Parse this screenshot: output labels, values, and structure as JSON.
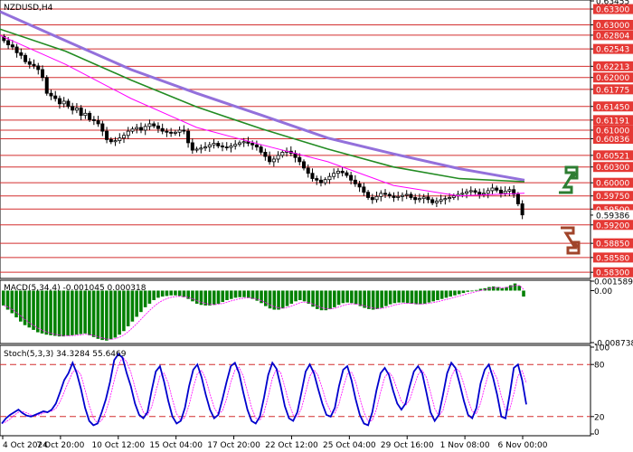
{
  "chart_data": [
    {
      "type": "candlestick",
      "symbol_label": "NZDUSD,H4",
      "ylim": [
        0.582,
        0.63455
      ],
      "axis_labels": [
        "0.63455",
        "0.63300",
        "0.63000",
        "0.62804",
        "0.62543",
        "0.62213",
        "0.62000",
        "0.61775",
        "0.61450",
        "0.61191",
        "0.61000",
        "0.60836",
        "0.60521",
        "0.60300",
        "0.60000",
        "0.59750",
        "0.59500",
        "0.59386",
        "0.59200",
        "0.58850",
        "0.58580",
        "0.58300"
      ],
      "resistance_levels": [
        0.633,
        0.63,
        0.62804,
        0.62543,
        0.62213,
        0.62,
        0.61775,
        0.6145,
        0.61191,
        0.61,
        0.60836,
        0.60521,
        0.603,
        0.6,
        0.5975,
        0.595,
        0.592,
        0.5885,
        0.5858,
        0.583
      ],
      "current_price": "0.59386",
      "x_labels": [
        "4 Oct 2024",
        "7 Oct 20:00",
        "10 Oct 12:00",
        "15 Oct 04:00",
        "17 Oct 20:00",
        "22 Oct 12:00",
        "25 Oct 04:00",
        "29 Oct 16:00",
        "1 Nov 08:00",
        "6 Nov 00:00"
      ],
      "close_prices": [
        0.627,
        0.6262,
        0.6258,
        0.6247,
        0.6242,
        0.623,
        0.6225,
        0.6222,
        0.6215,
        0.62,
        0.617,
        0.6165,
        0.616,
        0.615,
        0.6155,
        0.6145,
        0.6138,
        0.6142,
        0.6128,
        0.6132,
        0.612,
        0.6118,
        0.6112,
        0.6098,
        0.6082,
        0.6078,
        0.608,
        0.6085,
        0.609,
        0.6098,
        0.6102,
        0.6105,
        0.61,
        0.6107,
        0.6112,
        0.6108,
        0.6103,
        0.6098,
        0.6096,
        0.6094,
        0.6096,
        0.61,
        0.6098,
        0.6076,
        0.6062,
        0.6064,
        0.6066,
        0.6068,
        0.6072,
        0.6075,
        0.607,
        0.6068,
        0.6067,
        0.607,
        0.6073,
        0.6076,
        0.6078,
        0.6075,
        0.6072,
        0.6068,
        0.6058,
        0.605,
        0.604,
        0.6045,
        0.6052,
        0.6058,
        0.606,
        0.6056,
        0.6048,
        0.604,
        0.6028,
        0.6018,
        0.6008,
        0.6005,
        0.6,
        0.6006,
        0.6012,
        0.6018,
        0.6022,
        0.6019,
        0.6014,
        0.6005,
        0.5998,
        0.5992,
        0.5982,
        0.5972,
        0.5968,
        0.5974,
        0.598,
        0.5978,
        0.5975,
        0.5972,
        0.5974,
        0.5976,
        0.5978,
        0.5972,
        0.5968,
        0.597,
        0.5973,
        0.5968,
        0.5962,
        0.5965,
        0.5968,
        0.597,
        0.5972,
        0.5975,
        0.5978,
        0.598,
        0.5983,
        0.5985,
        0.5982,
        0.5978,
        0.598,
        0.5985,
        0.599,
        0.5986,
        0.598,
        0.5984,
        0.5987,
        0.5978,
        0.596,
        0.5939
      ],
      "series": [
        {
          "name": "",
          "color": "#9370DB",
          "values": [
            0.6325,
            0.627,
            0.6215,
            0.617,
            0.6128,
            0.6085,
            0.6055,
            0.6027,
            0.6005
          ]
        },
        {
          "name": "",
          "color": "#228B22",
          "values": [
            0.6292,
            0.625,
            0.6195,
            0.6144,
            0.6102,
            0.6064,
            0.603,
            0.6008,
            0.6002
          ]
        },
        {
          "name": "",
          "color": "#FF00FF",
          "values": [
            0.628,
            0.6225,
            0.616,
            0.6105,
            0.6072,
            0.604,
            0.5995,
            0.5975,
            0.598
          ]
        }
      ],
      "arrow_up_color": "#2E7D32",
      "arrow_down_color": "#A0442A"
    },
    {
      "type": "bar",
      "title": "MACD(5,34,4) -0.001045 0.000318",
      "axis_labels": [
        "0.001589",
        "0.00",
        "-0.008738"
      ],
      "ylim": [
        -0.008738,
        0.001589
      ],
      "bar_color": "#008000",
      "signal_color": "#FF00FF",
      "values": [
        -0.0025,
        -0.0032,
        -0.0038,
        -0.0045,
        -0.0052,
        -0.0058,
        -0.0062,
        -0.0066,
        -0.007,
        -0.0072,
        -0.0074,
        -0.0075,
        -0.0076,
        -0.0077,
        -0.0077,
        -0.0076,
        -0.0075,
        -0.0074,
        -0.0073,
        -0.0072,
        -0.0075,
        -0.0078,
        -0.0081,
        -0.0083,
        -0.0084,
        -0.0082,
        -0.0079,
        -0.0074,
        -0.0068,
        -0.006,
        -0.0052,
        -0.0044,
        -0.0036,
        -0.0028,
        -0.0022,
        -0.0016,
        -0.0012,
        -0.001,
        -0.0009,
        -0.0008,
        -0.0008,
        -0.0009,
        -0.0011,
        -0.0014,
        -0.0018,
        -0.0022,
        -0.0024,
        -0.0025,
        -0.0025,
        -0.0024,
        -0.0022,
        -0.0019,
        -0.0016,
        -0.0014,
        -0.0012,
        -0.0011,
        -0.0011,
        -0.0012,
        -0.0014,
        -0.0017,
        -0.0021,
        -0.0026,
        -0.003,
        -0.0032,
        -0.0032,
        -0.003,
        -0.0026,
        -0.0022,
        -0.0018,
        -0.0016,
        -0.0018,
        -0.0022,
        -0.0027,
        -0.0031,
        -0.0033,
        -0.0033,
        -0.0031,
        -0.0028,
        -0.0024,
        -0.0021,
        -0.002,
        -0.0021,
        -0.0023,
        -0.0026,
        -0.0029,
        -0.0031,
        -0.0032,
        -0.0031,
        -0.0029,
        -0.0026,
        -0.0023,
        -0.0021,
        -0.002,
        -0.002,
        -0.0021,
        -0.0022,
        -0.0023,
        -0.0023,
        -0.0022,
        -0.002,
        -0.0018,
        -0.0016,
        -0.0014,
        -0.0012,
        -0.001,
        -0.0008,
        -0.0006,
        -0.0004,
        -0.0002,
        -0.0001,
        0.0001,
        0.0003,
        0.0004,
        0.0006,
        0.0007,
        0.0006,
        0.0004,
        0.0006,
        0.0009,
        0.0012,
        0.0008,
        -0.001
      ]
    },
    {
      "type": "line",
      "title": "Stoch(5,3,3) 34.3284 55.6469",
      "axis_labels": [
        "100",
        "80",
        "20",
        "0"
      ],
      "ylim": [
        0,
        100
      ],
      "levels": [
        80,
        20
      ],
      "main_color": "#0000CD",
      "signal_color": "#FF00FF",
      "main": [
        12,
        18,
        22,
        25,
        28,
        24,
        21,
        20,
        22,
        24,
        26,
        25,
        28,
        35,
        48,
        62,
        70,
        82,
        70,
        52,
        30,
        15,
        10,
        12,
        25,
        40,
        60,
        85,
        92,
        88,
        70,
        55,
        35,
        22,
        18,
        25,
        50,
        72,
        78,
        60,
        38,
        20,
        12,
        15,
        30,
        55,
        74,
        80,
        65,
        45,
        28,
        18,
        22,
        40,
        60,
        78,
        82,
        70,
        48,
        28,
        15,
        12,
        20,
        42,
        68,
        82,
        75,
        55,
        32,
        18,
        15,
        25,
        48,
        72,
        80,
        70,
        52,
        35,
        22,
        20,
        30,
        55,
        74,
        78,
        62,
        40,
        22,
        12,
        10,
        25,
        50,
        70,
        76,
        68,
        50,
        35,
        28,
        35,
        55,
        72,
        78,
        70,
        48,
        25,
        15,
        22,
        45,
        70,
        82,
        76,
        58,
        38,
        22,
        18,
        30,
        58,
        74,
        80,
        65,
        45,
        20,
        18,
        45,
        76,
        80,
        62,
        34
      ]
    }
  ]
}
